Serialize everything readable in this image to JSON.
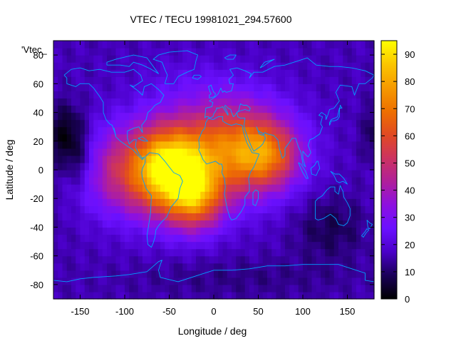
{
  "chart_data": {
    "type": "heatmap",
    "title": "VTEC / TECU 19981021_294.57600",
    "xlabel": "Longitude / deg",
    "ylabel": "Latitude / deg",
    "series_label": "'Vtec_",
    "xlim": [
      -180,
      180
    ],
    "ylim": [
      -90,
      90
    ],
    "xticks": [
      -150,
      -100,
      -50,
      0,
      50,
      100,
      150
    ],
    "yticks": [
      -80,
      -60,
      -40,
      -20,
      0,
      20,
      40,
      60,
      80
    ],
    "colorbar": {
      "range": [
        0,
        95
      ],
      "ticks": [
        0,
        10,
        20,
        30,
        40,
        50,
        60,
        70,
        80,
        90
      ],
      "palette": [
        "#000000",
        "#1a0058",
        "#4a00c8",
        "#6a10ff",
        "#8d10e0",
        "#b0209a",
        "#cc3360",
        "#e14a22",
        "#ee7000",
        "#f69a00",
        "#fbc600",
        "#ffff00"
      ]
    },
    "grid": "5 deg longitude x 5 deg latitude",
    "description_of_field": {
      "background_tecu": 16,
      "anomalies_lon_lat_tecu": [
        [
          -60,
          0,
          62
        ],
        [
          -20,
          -20,
          40
        ],
        [
          20,
          15,
          50
        ],
        [
          60,
          10,
          30
        ],
        [
          -40,
          0,
          20
        ],
        [
          -120,
          0,
          18
        ],
        [
          -150,
          5,
          -10
        ],
        [
          -165,
          25,
          -15
        ],
        [
          130,
          -40,
          -8
        ],
        [
          -30,
          60,
          4
        ],
        [
          30,
          -75,
          -4
        ]
      ]
    },
    "coastline_color": "#00a0ff"
  }
}
